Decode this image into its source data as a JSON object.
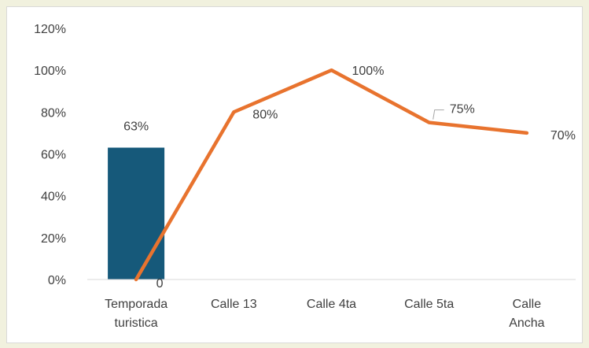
{
  "chart_data": {
    "type": "bar",
    "categories": [
      [
        "Temporada",
        "turistica"
      ],
      [
        "Calle 13"
      ],
      [
        "Calle 4ta"
      ],
      [
        "Calle 5ta"
      ],
      [
        "Calle",
        "Ancha"
      ]
    ],
    "y_ticks": [
      "0%",
      "20%",
      "40%",
      "60%",
      "80%",
      "100%",
      "120%"
    ],
    "ylim": [
      0,
      1.2
    ],
    "grid": false,
    "series": [
      {
        "kind": "bar",
        "values": [
          0.63,
          null,
          null,
          null,
          null
        ],
        "labels": [
          "63%",
          "",
          "",
          "",
          ""
        ],
        "color": "#16597a"
      },
      {
        "kind": "line",
        "values": [
          0,
          0.8,
          1.0,
          0.75,
          0.7
        ],
        "labels": [
          "0",
          "80%",
          "100%",
          "75%",
          "70%"
        ],
        "color": "#e8732e"
      }
    ]
  }
}
